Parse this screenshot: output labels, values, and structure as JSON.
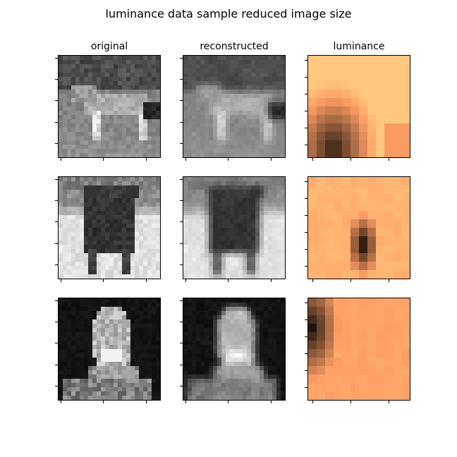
{
  "chart_data": {
    "type": "heatmap",
    "title": "luminance data sample reduced image size",
    "column_titles": [
      "original",
      "reconstructed",
      "luminance"
    ],
    "rows": 3,
    "image_grid_size": 24,
    "luminance_grid_size": 12,
    "colormaps": {
      "original": "gray",
      "reconstructed": "gray",
      "luminance": "copper"
    },
    "tick_labels_shown": false,
    "samples": [
      {
        "subject": "deer standing on grass",
        "luminance_dark_region": "lower-left"
      },
      {
        "subject": "bull facing forward",
        "luminance_dark_region": "center"
      },
      {
        "subject": "person portrait on dark background",
        "luminance_dark_region": "upper-left"
      }
    ]
  }
}
